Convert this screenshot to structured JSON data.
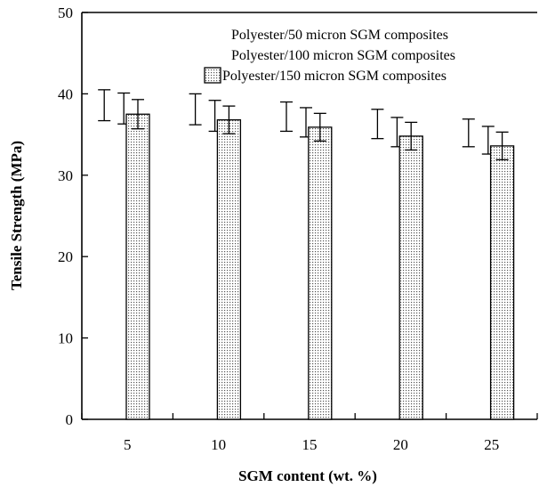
{
  "chart_data": {
    "type": "bar",
    "xlabel": "SGM content (wt. %)",
    "ylabel": "Tensile Strength (MPa)",
    "categories": [
      "5",
      "10",
      "15",
      "20",
      "25"
    ],
    "ylim": [
      0,
      50
    ],
    "yticks": [
      0,
      10,
      20,
      30,
      40,
      50
    ],
    "grid": false,
    "legend_position": "top-right",
    "series": [
      {
        "name": "Polyester/50 micron SGM composites",
        "fill": "none",
        "values": [
          38.6,
          38.1,
          37.2,
          36.3,
          35.2
        ],
        "error": [
          1.9,
          1.9,
          1.8,
          1.8,
          1.7
        ]
      },
      {
        "name": "Polyester/100 micron SGM composites",
        "fill": "none",
        "values": [
          38.2,
          37.3,
          36.5,
          35.3,
          34.3
        ],
        "error": [
          1.9,
          1.9,
          1.8,
          1.8,
          1.7
        ]
      },
      {
        "name": "Polyester/150 micron SGM composites",
        "fill": "dotted",
        "values": [
          37.5,
          36.8,
          35.9,
          34.8,
          33.6
        ],
        "error": [
          1.8,
          1.7,
          1.7,
          1.7,
          1.7
        ]
      }
    ]
  }
}
